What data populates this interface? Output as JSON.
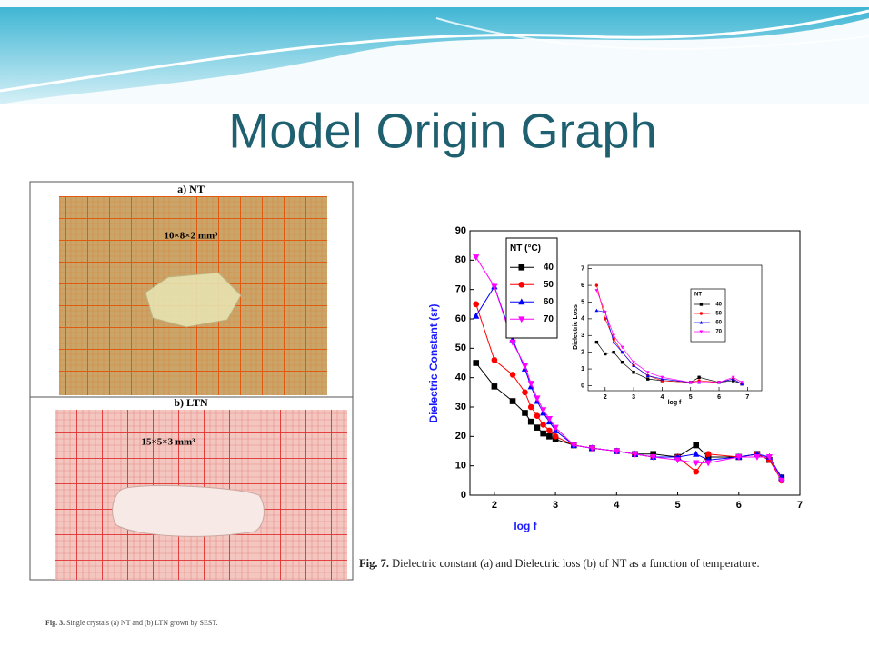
{
  "slide_title": "Model Origin Graph",
  "figure3": {
    "panel_a": {
      "label": "a) NT",
      "size": "10×8×2 mm³"
    },
    "panel_b": {
      "label": "b) LTN",
      "size": "15×5×3 mm³"
    },
    "caption_label": "Fig. 3.",
    "caption": "Single crystals (a) NT and (b) LTN grown by SEST."
  },
  "figure7": {
    "caption_label": "Fig. 7.",
    "caption": "Dielectric constant (a) and Dielectric loss (b) of NT as a function of temperature."
  },
  "chart_data": [
    {
      "type": "line",
      "x_label": "log f",
      "y_label": "Dielectric Constant (εr)",
      "legend_title": "NT (°C)",
      "x": [
        1.7,
        2,
        2.3,
        2.5,
        2.6,
        2.7,
        2.8,
        2.9,
        3.0,
        3.3,
        3.6,
        4,
        4.3,
        4.6,
        5,
        5.3,
        5.5,
        6,
        6.3,
        6.5,
        6.7
      ],
      "series": [
        {
          "name": "40",
          "color": "#000000",
          "marker": "square",
          "values": [
            45,
            37,
            32,
            28,
            25,
            23,
            21,
            20,
            19,
            17,
            16,
            15,
            14,
            14,
            13,
            17,
            13,
            13,
            14,
            12,
            6
          ]
        },
        {
          "name": "50",
          "color": "#ff0000",
          "marker": "circle",
          "values": [
            65,
            46,
            41,
            35,
            30,
            27,
            24,
            22,
            20,
            17,
            16,
            15,
            14,
            13,
            13,
            8,
            14,
            13,
            14,
            12,
            5
          ]
        },
        {
          "name": "60",
          "color": "#0000ff",
          "marker": "triangle-up",
          "values": [
            61,
            71,
            53,
            43,
            37,
            32,
            28,
            25,
            22,
            17,
            16,
            15,
            14,
            13,
            13,
            14,
            12,
            13,
            14,
            13,
            6
          ]
        },
        {
          "name": "70",
          "color": "#ff00ff",
          "marker": "triangle-down",
          "values": [
            81,
            71,
            52,
            44,
            38,
            33,
            29,
            26,
            23,
            17,
            16,
            15,
            14,
            13,
            12,
            11,
            11,
            13,
            13,
            13,
            5
          ]
        }
      ],
      "xlim": [
        1.6,
        7
      ],
      "ylim": [
        0,
        90
      ],
      "xticks": [
        2,
        3,
        4,
        5,
        6,
        7
      ],
      "yticks": [
        0,
        10,
        20,
        30,
        40,
        50,
        60,
        70,
        80,
        90
      ]
    },
    {
      "type": "line",
      "x_label": "log f",
      "y_label": "Dielectric Loss",
      "legend_title": "NT",
      "x": [
        1.7,
        2,
        2.3,
        2.6,
        3,
        3.5,
        4,
        5,
        5.3,
        6,
        6.5,
        6.8
      ],
      "series": [
        {
          "name": "40",
          "color": "#000000",
          "marker": "square",
          "values": [
            2.6,
            1.9,
            2.0,
            1.4,
            0.8,
            0.4,
            0.3,
            0.2,
            0.5,
            0.2,
            0.3,
            0.1
          ]
        },
        {
          "name": "50",
          "color": "#ff0000",
          "marker": "circle",
          "values": [
            6.0,
            4.0,
            2.8,
            2.0,
            1.2,
            0.6,
            0.3,
            0.2,
            0.3,
            0.2,
            0.4,
            0.1
          ]
        },
        {
          "name": "60",
          "color": "#0000ff",
          "marker": "triangle-up",
          "values": [
            4.5,
            4.4,
            2.6,
            2.0,
            1.2,
            0.6,
            0.4,
            0.2,
            0.2,
            0.2,
            0.4,
            0.1
          ]
        },
        {
          "name": "70",
          "color": "#ff00ff",
          "marker": "triangle-down",
          "values": [
            5.7,
            4.4,
            3.0,
            2.3,
            1.4,
            0.8,
            0.5,
            0.2,
            0.2,
            0.2,
            0.5,
            0.2
          ]
        }
      ],
      "xlim": [
        1.4,
        7.5
      ],
      "ylim": [
        -0.3,
        7.2
      ],
      "xticks": [
        2,
        3,
        4,
        5,
        6,
        7
      ],
      "yticks": [
        0,
        1,
        2,
        3,
        4,
        5,
        6,
        7
      ]
    }
  ]
}
